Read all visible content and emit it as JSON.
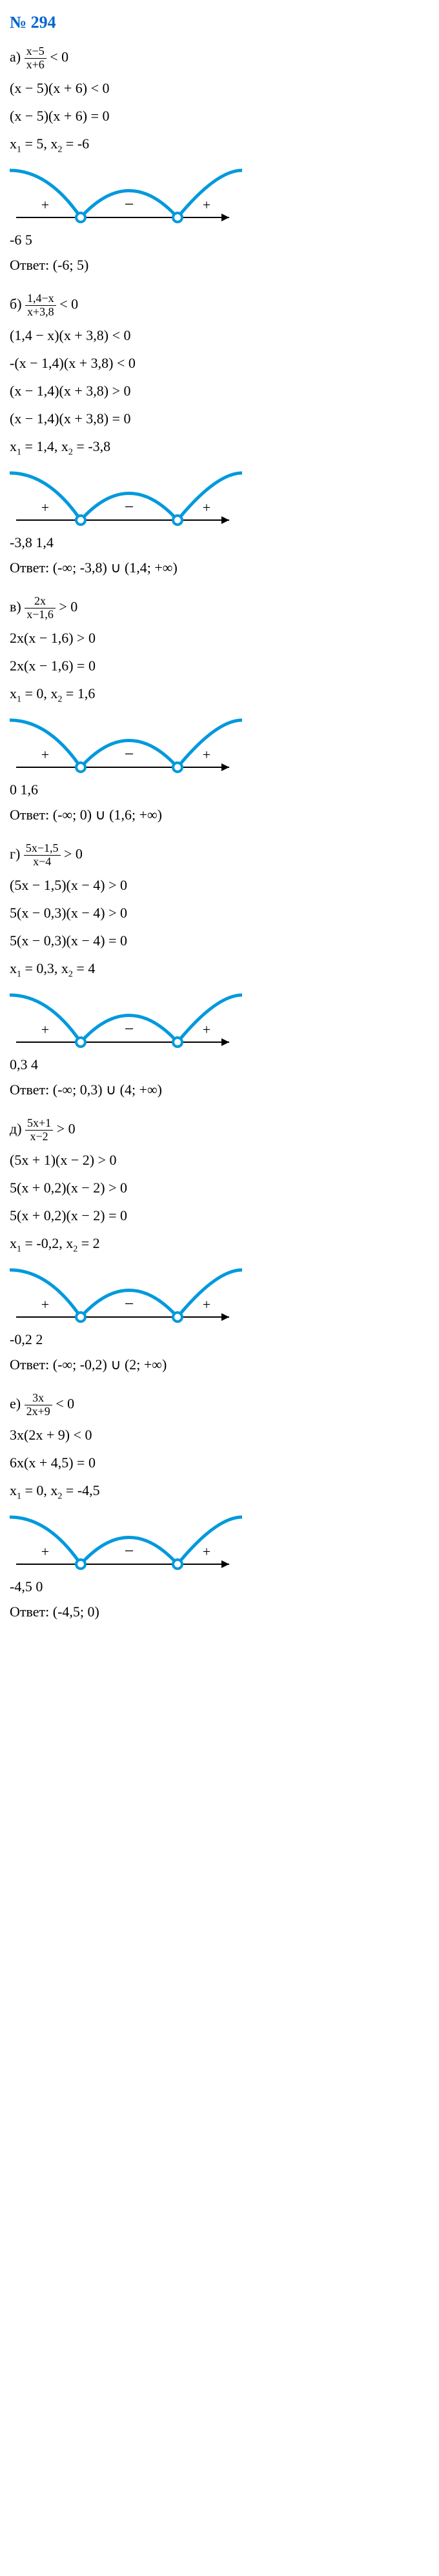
{
  "title": "№ 294",
  "stroke_color": "#0099dd",
  "axis_color": "#000000",
  "point_fill": "#ffffff",
  "sections": [
    {
      "label": "а)",
      "frac_num": "x−5",
      "frac_den": "x+6",
      "ineq": " < 0",
      "steps": [
        "(x − 5)(x + 6) < 0",
        "(x − 5)(x + 6) = 0"
      ],
      "roots_line": "x₁ = 5, x₂ = -6",
      "diagram": {
        "signs": [
          "+",
          "−",
          "+"
        ],
        "points": [
          "-6",
          "5"
        ]
      },
      "answer": "Ответ: (-6; 5)"
    },
    {
      "label": "б)",
      "frac_num": "1,4−x",
      "frac_den": "x+3,8",
      "ineq": " < 0",
      "steps": [
        "(1,4 − x)(x + 3,8) < 0",
        "-(x − 1,4)(x + 3,8) < 0",
        "(x − 1,4)(x + 3,8) > 0",
        "(x − 1,4)(x + 3,8) = 0"
      ],
      "roots_line": "x₁ = 1,4, x₂ = -3,8",
      "diagram": {
        "signs": [
          "+",
          "−",
          "+"
        ],
        "points": [
          "-3,8",
          "1,4"
        ]
      },
      "answer": "Ответ: (-∞; -3,8) ∪ (1,4; +∞)"
    },
    {
      "label": "в)",
      "frac_num": "2x",
      "frac_den": "x−1,6",
      "ineq": " > 0",
      "steps": [
        "2x(x − 1,6) > 0",
        "2x(x − 1,6) = 0"
      ],
      "roots_line": "x₁ = 0, x₂ = 1,6",
      "diagram": {
        "signs": [
          "+",
          "−",
          "+"
        ],
        "points": [
          "0",
          "1,6"
        ]
      },
      "answer": "Ответ: (-∞; 0) ∪ (1,6; +∞)"
    },
    {
      "label": "г)",
      "frac_num": "5x−1,5",
      "frac_den": "x−4",
      "ineq": " > 0",
      "steps": [
        "(5x − 1,5)(x − 4) > 0",
        "5(x − 0,3)(x − 4) > 0",
        "5(x − 0,3)(x − 4) = 0"
      ],
      "roots_line": "x₁ = 0,3, x₂ = 4",
      "diagram": {
        "signs": [
          "+",
          "−",
          "+"
        ],
        "points": [
          "0,3",
          "4"
        ]
      },
      "answer": "Ответ: (-∞; 0,3) ∪ (4; +∞)"
    },
    {
      "label": "д)",
      "frac_num": "5x+1",
      "frac_den": "x−2",
      "ineq": " > 0",
      "steps": [
        "(5x + 1)(x − 2) > 0",
        "5(x + 0,2)(x − 2) > 0",
        "5(x + 0,2)(x − 2) = 0"
      ],
      "roots_line": "x₁ = -0,2, x₂ = 2",
      "diagram": {
        "signs": [
          "+",
          "−",
          "+"
        ],
        "points": [
          "-0,2",
          "2"
        ]
      },
      "answer": "Ответ: (-∞; -0,2) ∪ (2; +∞)"
    },
    {
      "label": "е)",
      "frac_num": "3x",
      "frac_den": "2x+9",
      "ineq": " < 0",
      "steps": [
        "3x(2x + 9) < 0",
        "6x(x + 4,5) = 0"
      ],
      "roots_line": "x₁ = 0, x₂ = -4,5",
      "diagram": {
        "signs": [
          "+",
          "−",
          "+"
        ],
        "points": [
          "-4,5",
          "0"
        ]
      },
      "answer": "Ответ: (-4,5; 0)"
    }
  ]
}
